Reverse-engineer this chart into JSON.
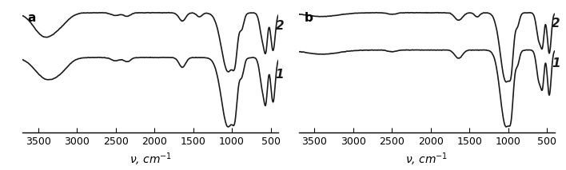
{
  "title_a": "a",
  "title_b": "b",
  "xlabel": "$\\nu$, cm$^{-1}$",
  "xlim": [
    3700,
    400
  ],
  "xticks": [
    3500,
    3000,
    2500,
    2000,
    1500,
    1000,
    500
  ],
  "background_color": "#ffffff",
  "line_color": "#1a1a1a",
  "label1": "1",
  "label2": "2"
}
